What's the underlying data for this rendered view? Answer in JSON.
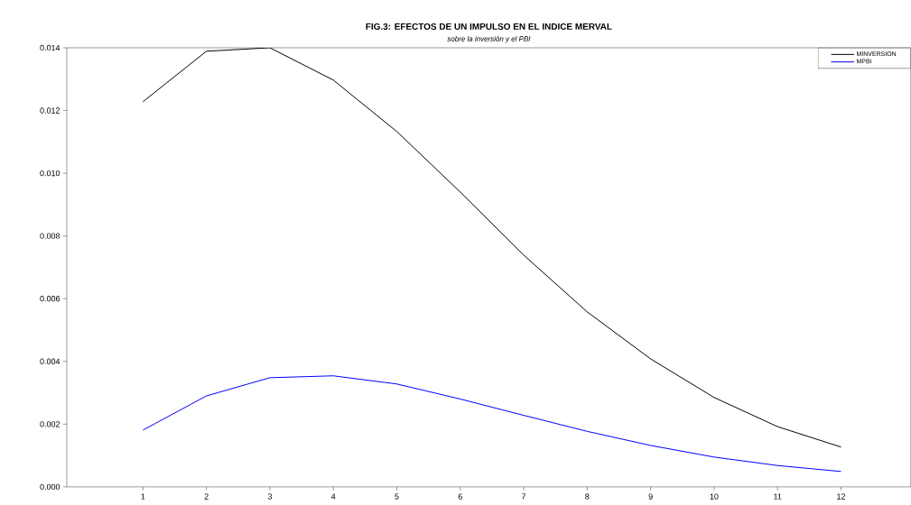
{
  "chart_data": {
    "type": "line",
    "title": "FIG.3: EFECTOS DE UN IMPULSO EN EL INDICE MERVAL",
    "subtitle": "sobre la inversión y el PBI",
    "x": [
      1,
      2,
      3,
      4,
      5,
      6,
      7,
      8,
      9,
      10,
      11,
      12
    ],
    "series": [
      {
        "name": "MINVERSION",
        "color": "#000000",
        "values": [
          0.01228,
          0.01389,
          0.014,
          0.01297,
          0.01133,
          0.0094,
          0.00739,
          0.00558,
          0.00408,
          0.00285,
          0.00192,
          0.00127
        ]
      },
      {
        "name": "MPBI",
        "color": "#0000ff",
        "values": [
          0.00181,
          0.0029,
          0.00348,
          0.00354,
          0.00328,
          0.0028,
          0.00228,
          0.00177,
          0.00132,
          0.00095,
          0.00068,
          0.00049
        ]
      }
    ],
    "xlim": [
      -0.2,
      13.1
    ],
    "xticks": [
      1,
      2,
      3,
      4,
      5,
      6,
      7,
      8,
      9,
      10,
      11,
      12
    ],
    "ylim": [
      0,
      0.014
    ],
    "yticks": [
      {
        "value": 0,
        "label": "0.000"
      },
      {
        "value": 0.002,
        "label": "0.002"
      },
      {
        "value": 0.004,
        "label": "0.004"
      },
      {
        "value": 0.006,
        "label": "0.006"
      },
      {
        "value": 0.008,
        "label": "0.008"
      },
      {
        "value": 0.01,
        "label": "0.010"
      },
      {
        "value": 0.012,
        "label": "0.012"
      },
      {
        "value": 0.014,
        "label": "0.014"
      }
    ],
    "legend": "top right",
    "grid": false,
    "marker": "none",
    "line_style": "solid"
  }
}
